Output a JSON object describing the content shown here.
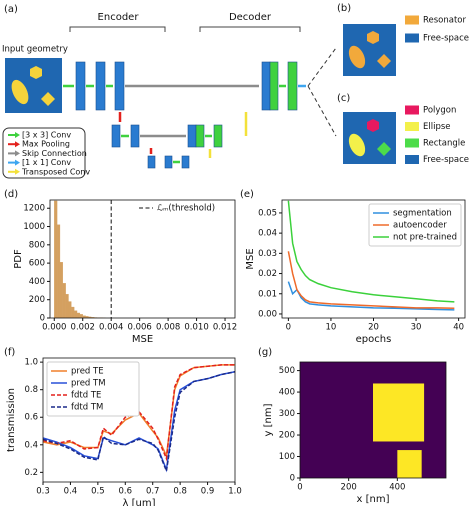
{
  "diagram": {
    "panel_labels": [
      "(a)",
      "(b)",
      "(c)"
    ],
    "encoder": "Encoder",
    "decoder": "Decoder",
    "input_label": "Input geometry",
    "legend": [
      {
        "label": "[3 x 3] Conv",
        "color": "#3fd13f"
      },
      {
        "label": "Max Pooling",
        "color": "#e3211c"
      },
      {
        "label": "Skip Connection",
        "color": "#8c8c8c"
      },
      {
        "label": "[1 x 1] Conv",
        "color": "#3ea6f0"
      },
      {
        "label": "Transposed Conv",
        "color": "#f3e13a"
      }
    ],
    "b_legend": [
      {
        "label": "Resonator",
        "color": "#f2a93b"
      },
      {
        "label": "Free-space",
        "color": "#1f67b1"
      }
    ],
    "c_legend": [
      {
        "label": "Polygon",
        "color": "#e8195f"
      },
      {
        "label": "Ellipse",
        "color": "#f3f04a"
      },
      {
        "label": "Rectangle",
        "color": "#4ddc4a"
      },
      {
        "label": "Free-space",
        "color": "#1f67b1"
      }
    ]
  },
  "chart_data": [
    {
      "type": "histogram",
      "panel_label": "(d)",
      "xlabel": "MSE",
      "ylabel": "PDF",
      "color": "#d4a060",
      "bins": [
        0,
        0.0002,
        0.0004,
        0.0006,
        0.0008,
        0.001,
        0.0012,
        0.0014,
        0.0016,
        0.0018,
        0.002,
        0.0022,
        0.0024,
        0.0026,
        0.0028,
        0.003,
        0.0032,
        0.0034,
        0.0036
      ],
      "values": [
        1280,
        1020,
        610,
        380,
        260,
        180,
        120,
        80,
        55,
        40,
        25,
        18,
        12,
        8,
        5,
        3,
        2,
        1
      ],
      "threshold": 0.004,
      "threshold_label": "ℒₘ(threshold)",
      "legend": "upper right",
      "xlim": [
        -0.0003,
        0.0127
      ],
      "ylim": [
        0,
        1290
      ],
      "xticks": [
        {
          "value": 0,
          "label": "0.000"
        },
        {
          "value": 0.002,
          "label": "0.002"
        },
        {
          "value": 0.004,
          "label": "0.004"
        },
        {
          "value": 0.006,
          "label": "0.006"
        },
        {
          "value": 0.008,
          "label": "0.008"
        },
        {
          "value": 0.01,
          "label": "0.010"
        },
        {
          "value": 0.012,
          "label": "0.012"
        }
      ],
      "yticks": [
        0,
        200,
        400,
        600,
        800,
        1000,
        1200
      ]
    },
    {
      "type": "line",
      "panel_label": "(e)",
      "xlabel": "epochs",
      "ylabel": "MSE",
      "legend": "upper right",
      "x": [
        0,
        1,
        2,
        3,
        4,
        5,
        7,
        10,
        15,
        20,
        25,
        30,
        35,
        39
      ],
      "series": [
        {
          "name": "segmentation",
          "color": "#2f8fdf",
          "style": "solid",
          "values": [
            0.016,
            0.01,
            0.012,
            0.008,
            0.006,
            0.005,
            0.0045,
            0.004,
            0.0035,
            0.003,
            0.0028,
            0.0025,
            0.0022,
            0.002
          ]
        },
        {
          "name": "autoencoder",
          "color": "#ef6a2a",
          "style": "solid",
          "values": [
            0.031,
            0.02,
            0.012,
            0.009,
            0.007,
            0.006,
            0.0055,
            0.005,
            0.0045,
            0.004,
            0.0035,
            0.003,
            0.003,
            0.0028
          ]
        },
        {
          "name": "not pre-trained",
          "color": "#3bd13b",
          "style": "solid",
          "values": [
            0.056,
            0.035,
            0.026,
            0.022,
            0.019,
            0.017,
            0.015,
            0.013,
            0.011,
            0.0095,
            0.0085,
            0.0075,
            0.0065,
            0.006
          ]
        }
      ],
      "xlim": [
        -1.5,
        41.5
      ],
      "ylim": [
        -0.002,
        0.0564
      ],
      "xticks": [
        0,
        10,
        20,
        30,
        40
      ],
      "yticks": [
        {
          "value": 0,
          "label": "0.00"
        },
        {
          "value": 0.01,
          "label": "0.01"
        },
        {
          "value": 0.02,
          "label": "0.02"
        },
        {
          "value": 0.03,
          "label": "0.03"
        },
        {
          "value": 0.04,
          "label": "0.04"
        },
        {
          "value": 0.05,
          "label": "0.05"
        }
      ]
    },
    {
      "type": "line",
      "panel_label": "(f)",
      "xlabel": "λ [um]",
      "ylabel": "transmission",
      "legend": "upper left",
      "x": [
        0.3,
        0.35,
        0.4,
        0.45,
        0.5,
        0.52,
        0.55,
        0.6,
        0.65,
        0.7,
        0.72,
        0.75,
        0.78,
        0.8,
        0.85,
        0.9,
        0.95,
        1.0
      ],
      "series": [
        {
          "name": "pred TE",
          "color": "#f07f2b",
          "style": "solid",
          "values": [
            0.42,
            0.4,
            0.42,
            0.38,
            0.38,
            0.5,
            0.48,
            0.58,
            0.63,
            0.5,
            0.45,
            0.32,
            0.8,
            0.9,
            0.96,
            0.97,
            0.98,
            0.98
          ]
        },
        {
          "name": "pred TM",
          "color": "#2850d8",
          "style": "solid",
          "values": [
            0.45,
            0.42,
            0.38,
            0.32,
            0.3,
            0.45,
            0.43,
            0.4,
            0.45,
            0.4,
            0.37,
            0.22,
            0.65,
            0.8,
            0.86,
            0.88,
            0.91,
            0.93
          ]
        },
        {
          "name": "fdtd TE",
          "color": "#e3211c",
          "style": "dashed",
          "values": [
            0.43,
            0.41,
            0.43,
            0.37,
            0.38,
            0.52,
            0.47,
            0.6,
            0.64,
            0.52,
            0.44,
            0.3,
            0.82,
            0.91,
            0.96,
            0.97,
            0.98,
            0.98
          ]
        },
        {
          "name": "fdtd TM",
          "color": "#1a2a8a",
          "style": "dashed",
          "values": [
            0.44,
            0.41,
            0.37,
            0.31,
            0.29,
            0.46,
            0.41,
            0.4,
            0.44,
            0.41,
            0.36,
            0.21,
            0.6,
            0.78,
            0.86,
            0.88,
            0.91,
            0.93
          ]
        }
      ],
      "xlim": [
        0.3,
        1.0
      ],
      "ylim": [
        0.13,
        1.03
      ],
      "xticks": [
        0.3,
        0.4,
        0.5,
        0.6,
        0.7,
        0.8,
        0.9,
        {
          "value": 1,
          "label": "1.0"
        }
      ],
      "yticks": [
        0.2,
        0.4,
        0.6,
        0.8,
        {
          "value": 1,
          "label": "1.0"
        }
      ]
    },
    {
      "type": "image",
      "panel_label": "(g)",
      "xlabel": "x [nm]",
      "ylabel": "y [nm]",
      "background": "#440154",
      "rect_color": "#fde725",
      "rects": [
        {
          "x": [
            300,
            510
          ],
          "y": [
            170,
            440
          ]
        },
        {
          "x": [
            400,
            500
          ],
          "y": [
            0,
            130
          ]
        }
      ],
      "xlim": [
        0,
        600
      ],
      "ylim": [
        0,
        540
      ],
      "xticks": [
        0,
        200,
        400
      ],
      "yticks": [
        0,
        100,
        200,
        300,
        400,
        500
      ]
    }
  ]
}
